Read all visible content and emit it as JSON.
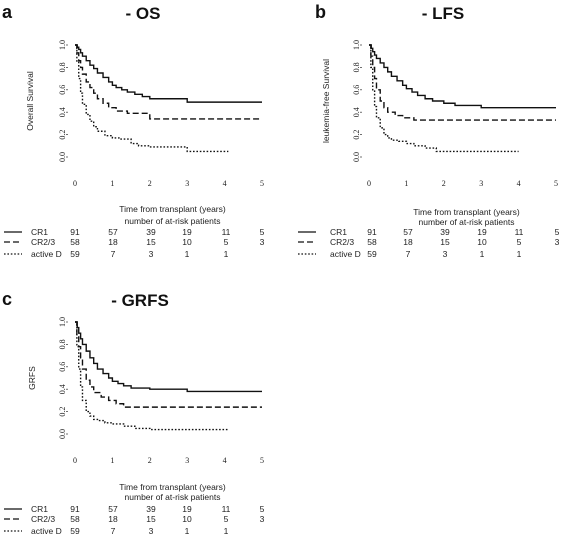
{
  "risk_table_title": "number of at-risk patients",
  "risk_times": [
    "0",
    "1",
    "2",
    "3",
    "4",
    "5"
  ],
  "groups": [
    {
      "name": "CR1",
      "style": "solid",
      "at_risk": [
        "91",
        "57",
        "39",
        "19",
        "11",
        "5"
      ]
    },
    {
      "name": "CR2/3",
      "style": "dashed",
      "at_risk": [
        "58",
        "18",
        "15",
        "10",
        "5",
        "3"
      ]
    },
    {
      "name": "active D",
      "style": "dotted",
      "at_risk": [
        "59",
        "7",
        "3",
        "1",
        "1"
      ]
    }
  ],
  "chart_data": [
    {
      "panel": "a",
      "title": "- OS",
      "type": "line",
      "step": true,
      "xlabel": "Time from transplant (years)",
      "ylabel": "Overall Survival",
      "xlim": [
        0,
        5
      ],
      "ylim": [
        0,
        1
      ],
      "xticks": [
        "0",
        "1",
        "2",
        "3",
        "4",
        "5"
      ],
      "yticks": [
        "0.0",
        "0.2",
        "0.4",
        "0.6",
        "0.8",
        "1.0"
      ],
      "series": [
        {
          "name": "CR1",
          "style": "solid",
          "x": [
            0,
            0.06,
            0.1,
            0.15,
            0.2,
            0.3,
            0.4,
            0.5,
            0.6,
            0.75,
            0.9,
            1.0,
            1.1,
            1.25,
            1.4,
            1.6,
            1.8,
            2.0,
            3.0,
            5.0
          ],
          "y": [
            1.0,
            0.98,
            0.96,
            0.93,
            0.9,
            0.86,
            0.82,
            0.79,
            0.75,
            0.71,
            0.67,
            0.64,
            0.62,
            0.6,
            0.58,
            0.56,
            0.54,
            0.52,
            0.49,
            0.49
          ]
        },
        {
          "name": "CR2/3",
          "style": "dashed",
          "x": [
            0,
            0.05,
            0.1,
            0.15,
            0.2,
            0.3,
            0.4,
            0.5,
            0.6,
            0.75,
            0.9,
            1.1,
            1.4,
            2.0,
            5.0
          ],
          "y": [
            1.0,
            0.93,
            0.86,
            0.8,
            0.74,
            0.67,
            0.62,
            0.57,
            0.52,
            0.48,
            0.44,
            0.41,
            0.39,
            0.34,
            0.34
          ]
        },
        {
          "name": "active D",
          "style": "dotted",
          "x": [
            0,
            0.05,
            0.1,
            0.15,
            0.2,
            0.3,
            0.4,
            0.5,
            0.6,
            0.8,
            1.0,
            1.2,
            1.5,
            1.7,
            2.0,
            3.0,
            4.1
          ],
          "y": [
            1.0,
            0.85,
            0.7,
            0.57,
            0.47,
            0.38,
            0.32,
            0.27,
            0.23,
            0.19,
            0.17,
            0.16,
            0.12,
            0.1,
            0.09,
            0.05,
            0.05
          ]
        }
      ]
    },
    {
      "panel": "b",
      "title": "- LFS",
      "type": "line",
      "step": true,
      "xlabel": "Time from transplant (years)",
      "ylabel": "leukemia-free Survival",
      "xlim": [
        0,
        5
      ],
      "ylim": [
        0,
        1
      ],
      "xticks": [
        "0",
        "1",
        "2",
        "3",
        "4",
        "5"
      ],
      "yticks": [
        "0.0",
        "0.2",
        "0.4",
        "0.6",
        "0.8",
        "1.0"
      ],
      "series": [
        {
          "name": "CR1",
          "style": "solid",
          "x": [
            0,
            0.06,
            0.1,
            0.15,
            0.2,
            0.3,
            0.4,
            0.5,
            0.6,
            0.75,
            0.9,
            1.0,
            1.15,
            1.3,
            1.5,
            1.7,
            2.0,
            2.3,
            3.0,
            5.0
          ],
          "y": [
            1.0,
            0.97,
            0.94,
            0.91,
            0.88,
            0.84,
            0.8,
            0.76,
            0.72,
            0.68,
            0.64,
            0.61,
            0.58,
            0.55,
            0.52,
            0.5,
            0.48,
            0.46,
            0.44,
            0.44
          ]
        },
        {
          "name": "CR2/3",
          "style": "dashed",
          "x": [
            0,
            0.05,
            0.1,
            0.15,
            0.2,
            0.3,
            0.4,
            0.5,
            0.7,
            0.9,
            1.2,
            5.0
          ],
          "y": [
            1.0,
            0.9,
            0.8,
            0.7,
            0.6,
            0.5,
            0.44,
            0.4,
            0.37,
            0.35,
            0.33,
            0.33
          ]
        },
        {
          "name": "active D",
          "style": "dotted",
          "x": [
            0,
            0.05,
            0.1,
            0.15,
            0.2,
            0.3,
            0.4,
            0.5,
            0.6,
            0.8,
            1.0,
            1.2,
            1.5,
            1.8,
            4.0
          ],
          "y": [
            1.0,
            0.8,
            0.6,
            0.45,
            0.35,
            0.26,
            0.2,
            0.17,
            0.15,
            0.14,
            0.12,
            0.1,
            0.08,
            0.05,
            0.05
          ]
        }
      ]
    },
    {
      "panel": "c",
      "title": "- GRFS",
      "type": "line",
      "step": true,
      "xlabel": "Time from transplant (years)",
      "ylabel": "GRFS",
      "xlim": [
        0,
        5
      ],
      "ylim": [
        0,
        1
      ],
      "xticks": [
        "0",
        "1",
        "2",
        "3",
        "4",
        "5"
      ],
      "yticks": [
        "0.0",
        "0.2",
        "0.4",
        "0.6",
        "0.8",
        "1.0"
      ],
      "series": [
        {
          "name": "CR1",
          "style": "solid",
          "x": [
            0,
            0.06,
            0.1,
            0.15,
            0.2,
            0.3,
            0.4,
            0.5,
            0.6,
            0.75,
            0.9,
            1.0,
            1.15,
            1.3,
            1.5,
            2.0,
            3.0,
            5.0
          ],
          "y": [
            1.0,
            0.95,
            0.9,
            0.85,
            0.8,
            0.74,
            0.68,
            0.63,
            0.58,
            0.54,
            0.5,
            0.47,
            0.45,
            0.43,
            0.41,
            0.4,
            0.38,
            0.38
          ]
        },
        {
          "name": "CR2/3",
          "style": "dashed",
          "x": [
            0,
            0.05,
            0.1,
            0.15,
            0.2,
            0.3,
            0.4,
            0.5,
            0.7,
            0.9,
            1.1,
            1.3,
            5.0
          ],
          "y": [
            1.0,
            0.88,
            0.78,
            0.68,
            0.58,
            0.48,
            0.42,
            0.37,
            0.33,
            0.3,
            0.27,
            0.24,
            0.24
          ]
        },
        {
          "name": "active D",
          "style": "dotted",
          "x": [
            0,
            0.05,
            0.1,
            0.15,
            0.2,
            0.3,
            0.4,
            0.5,
            0.6,
            0.8,
            1.0,
            1.3,
            1.6,
            2.0,
            4.1
          ],
          "y": [
            1.0,
            0.78,
            0.58,
            0.42,
            0.3,
            0.2,
            0.16,
            0.13,
            0.12,
            0.1,
            0.09,
            0.07,
            0.05,
            0.04,
            0.04
          ]
        }
      ]
    }
  ]
}
